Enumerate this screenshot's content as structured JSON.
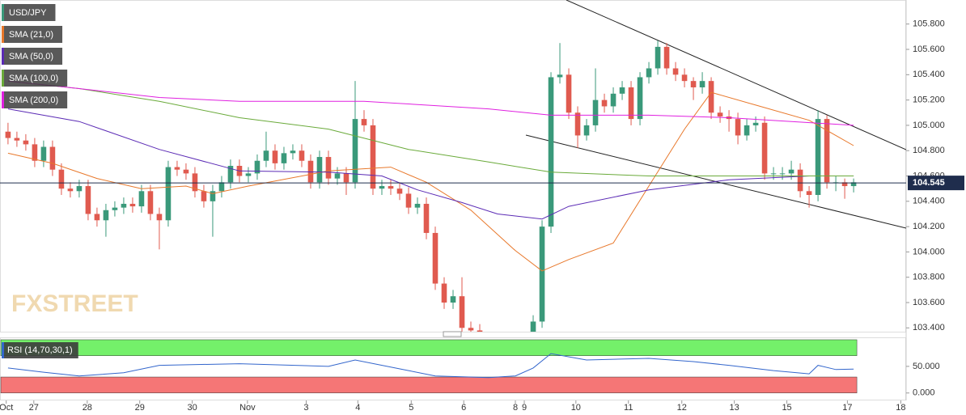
{
  "chart_data": {
    "type": "candlestick",
    "symbol": "USD/JPY",
    "watermark": "FXSTREET",
    "up_color": "#3a997a",
    "down_color": "#e05a4f",
    "x": [
      0,
      1,
      2,
      3,
      4,
      5,
      6,
      7,
      8,
      9,
      10,
      11,
      12,
      13,
      14,
      15,
      16,
      17,
      18,
      19,
      20,
      21,
      22,
      23,
      24,
      25,
      26,
      27,
      28,
      29,
      30,
      31,
      32,
      33,
      34,
      35,
      36,
      37,
      38,
      39,
      40,
      41,
      42,
      43,
      44,
      45,
      46,
      47,
      48,
      49,
      50,
      51,
      52,
      53,
      59,
      60,
      61,
      62,
      63,
      64,
      65,
      66,
      67,
      68,
      69,
      70,
      71,
      72,
      73,
      74,
      75,
      76,
      77,
      78,
      79,
      80,
      81,
      82,
      83,
      84,
      85,
      86,
      87,
      88,
      89,
      90,
      91,
      92,
      93,
      94,
      95
    ],
    "open": [
      104.95,
      104.9,
      104.88,
      104.85,
      104.72,
      104.83,
      104.65,
      104.5,
      104.48,
      104.52,
      104.3,
      104.25,
      104.33,
      104.35,
      104.38,
      104.36,
      104.48,
      104.3,
      104.25,
      104.67,
      104.65,
      104.62,
      104.48,
      104.4,
      104.48,
      104.55,
      104.68,
      104.6,
      104.62,
      104.72,
      104.8,
      104.7,
      104.78,
      104.8,
      104.72,
      104.55,
      104.75,
      104.58,
      104.62,
      104.55,
      105.05,
      105.0,
      104.5,
      104.52,
      104.5,
      104.46,
      104.35,
      104.38,
      104.15,
      103.75,
      103.6,
      103.65,
      103.4,
      103.38,
      103.3,
      103.45,
      104.2,
      105.38,
      105.4,
      105.1,
      104.92,
      105.0,
      105.2,
      105.15,
      105.25,
      105.3,
      105.05,
      105.38,
      105.45,
      105.62,
      105.45,
      105.4,
      105.35,
      105.3,
      105.35,
      105.1,
      105.07,
      105.05,
      104.92,
      105.0,
      105.02,
      104.62,
      104.62,
      104.62,
      104.65,
      104.48,
      104.45,
      105.05,
      104.55,
      104.55,
      104.52
    ],
    "high": [
      105.02,
      104.95,
      104.93,
      104.9,
      104.88,
      104.88,
      104.7,
      104.55,
      104.57,
      104.57,
      104.35,
      104.38,
      104.4,
      104.43,
      104.43,
      104.53,
      104.53,
      104.35,
      104.72,
      104.72,
      104.7,
      104.67,
      104.53,
      104.53,
      104.6,
      104.73,
      104.73,
      104.67,
      104.77,
      104.95,
      104.85,
      104.83,
      104.85,
      104.85,
      104.77,
      104.8,
      104.8,
      104.67,
      104.67,
      105.35,
      105.12,
      105.05,
      104.57,
      104.57,
      104.55,
      104.51,
      104.43,
      104.43,
      104.2,
      103.8,
      103.7,
      103.8,
      103.45,
      103.43,
      103.5,
      104.25,
      105.42,
      105.65,
      105.45,
      105.15,
      105.05,
      105.45,
      105.25,
      105.3,
      105.35,
      105.35,
      105.42,
      105.5,
      105.67,
      105.65,
      105.5,
      105.45,
      105.38,
      105.42,
      105.38,
      105.15,
      105.12,
      105.1,
      105.05,
      105.07,
      105.07,
      104.67,
      104.67,
      104.72,
      104.7,
      104.52,
      105.12,
      105.08,
      104.6,
      104.58,
      104.58
    ],
    "low": [
      104.85,
      104.83,
      104.8,
      104.67,
      104.67,
      104.6,
      104.45,
      104.43,
      104.43,
      104.25,
      104.2,
      104.12,
      104.28,
      104.3,
      104.31,
      104.31,
      104.25,
      104.02,
      104.2,
      104.6,
      104.57,
      104.43,
      104.35,
      104.12,
      104.43,
      104.5,
      104.55,
      104.55,
      104.57,
      104.67,
      104.65,
      104.65,
      104.73,
      104.67,
      104.5,
      104.5,
      104.53,
      104.53,
      104.45,
      104.5,
      104.95,
      104.45,
      104.45,
      104.45,
      104.41,
      104.3,
      104.3,
      104.1,
      103.7,
      103.55,
      103.55,
      103.35,
      103.33,
      103.3,
      103.25,
      103.4,
      104.15,
      105.33,
      105.05,
      104.82,
      104.88,
      104.95,
      105.1,
      105.1,
      105.2,
      105.0,
      105.0,
      105.33,
      105.4,
      105.4,
      105.35,
      105.3,
      105.2,
      105.25,
      105.05,
      105.02,
      104.95,
      104.85,
      104.88,
      104.95,
      104.57,
      104.57,
      104.57,
      104.57,
      104.43,
      104.35,
      104.4,
      104.5,
      104.48,
      104.42,
      104.47
    ],
    "close": [
      104.9,
      104.88,
      104.85,
      104.72,
      104.83,
      104.65,
      104.5,
      104.48,
      104.52,
      104.3,
      104.25,
      104.33,
      104.35,
      104.38,
      104.36,
      104.48,
      104.3,
      104.25,
      104.67,
      104.65,
      104.62,
      104.48,
      104.4,
      104.48,
      104.55,
      104.68,
      104.6,
      104.62,
      104.72,
      104.8,
      104.7,
      104.78,
      104.8,
      104.72,
      104.55,
      104.75,
      104.58,
      104.62,
      104.55,
      105.05,
      105.0,
      104.5,
      104.52,
      104.5,
      104.46,
      104.35,
      104.38,
      104.15,
      103.75,
      103.6,
      103.65,
      103.4,
      103.38,
      103.35,
      103.45,
      104.2,
      105.38,
      105.4,
      105.1,
      104.92,
      105.0,
      105.2,
      105.15,
      105.25,
      105.3,
      105.05,
      105.38,
      105.45,
      105.62,
      105.45,
      105.4,
      105.35,
      105.3,
      105.35,
      105.1,
      105.07,
      105.05,
      104.92,
      105.0,
      105.02,
      104.62,
      104.62,
      104.62,
      104.65,
      104.48,
      104.45,
      105.05,
      104.55,
      104.55,
      104.52,
      104.55
    ],
    "overlays": [
      {
        "name": "SMA (21,0)",
        "color": "#e8782b",
        "x": [
          0,
          5,
          10,
          15,
          20,
          23,
          27,
          36,
          43,
          47,
          52,
          57,
          60,
          63,
          68,
          72,
          76,
          79,
          84,
          90,
          95
        ],
        "values": [
          104.78,
          104.7,
          104.58,
          104.5,
          104.52,
          104.46,
          104.52,
          104.64,
          104.67,
          104.55,
          104.33,
          104.01,
          103.85,
          103.94,
          104.07,
          104.52,
          104.97,
          105.26,
          105.16,
          105.04,
          104.84
        ]
      },
      {
        "name": "SMA (50,0)",
        "color": "#5b2bb5",
        "x": [
          0,
          8,
          17,
          26,
          36,
          42,
          46,
          51,
          55,
          60,
          63,
          72,
          81,
          90,
          95
        ],
        "values": [
          105.13,
          105.03,
          104.81,
          104.64,
          104.63,
          104.6,
          104.49,
          104.39,
          104.3,
          104.26,
          104.36,
          104.49,
          104.57,
          104.6,
          104.6
        ]
      },
      {
        "name": "SMA (100,0)",
        "color": "#6aaa3a",
        "x": [
          0,
          8,
          17,
          26,
          36,
          45,
          54,
          61,
          72,
          81,
          95
        ],
        "values": [
          105.35,
          105.29,
          105.19,
          105.06,
          104.97,
          104.81,
          104.71,
          104.63,
          104.6,
          104.6,
          104.6
        ]
      },
      {
        "name": "SMA (200,0)",
        "color": "#e020e0",
        "x": [
          0,
          8,
          17,
          26,
          40,
          54,
          61,
          72,
          81,
          95
        ],
        "values": [
          105.35,
          105.29,
          105.22,
          105.19,
          105.19,
          105.13,
          105.08,
          105.08,
          105.06,
          105.0
        ]
      }
    ],
    "last_price": 104.545,
    "xlim": [
      -0.9,
      100.9
    ],
    "ylim": [
      103.37,
      105.99
    ],
    "yticks": [
      {
        "value": 105.8,
        "label": "105.800"
      },
      {
        "value": 105.6,
        "label": "105.600"
      },
      {
        "value": 105.4,
        "label": "105.400"
      },
      {
        "value": 105.2,
        "label": "105.200"
      },
      {
        "value": 105.0,
        "label": "105.000"
      },
      {
        "value": 104.8,
        "label": "104.800"
      },
      {
        "value": 104.6,
        "label": "104.600"
      },
      {
        "value": 104.4,
        "label": "104.400"
      },
      {
        "value": 104.2,
        "label": "104.200"
      },
      {
        "value": 104.0,
        "label": "104.000"
      },
      {
        "value": 103.8,
        "label": "103.800"
      },
      {
        "value": 103.6,
        "label": "103.600"
      },
      {
        "value": 103.4,
        "label": "103.400"
      }
    ],
    "xticks": [
      {
        "value": -0.2,
        "label": "Oct"
      },
      {
        "value": 2.9,
        "label": "27"
      },
      {
        "value": 8.9,
        "label": "28"
      },
      {
        "value": 14.8,
        "label": "29"
      },
      {
        "value": 20.7,
        "label": "30"
      },
      {
        "value": 26.9,
        "label": "Nov"
      },
      {
        "value": 33.5,
        "label": "3"
      },
      {
        "value": 39.3,
        "label": "4"
      },
      {
        "value": 45.3,
        "label": "5"
      },
      {
        "value": 51.2,
        "label": "6"
      },
      {
        "value": 57,
        "label": "8"
      },
      {
        "value": 58,
        "label": "9"
      },
      {
        "value": 63.8,
        "label": "10"
      },
      {
        "value": 69.7,
        "label": "11"
      },
      {
        "value": 75.7,
        "label": "12"
      },
      {
        "value": 81.6,
        "label": "13"
      },
      {
        "value": 87.5,
        "label": "15"
      },
      {
        "value": 94.3,
        "label": "17"
      },
      {
        "value": 100.3,
        "label": "18"
      }
    ],
    "rsi": {
      "name": "RSI (14,70,30,1)",
      "color": "#3366cc",
      "x": [
        0,
        4,
        8,
        13,
        17,
        26,
        36,
        39,
        45,
        48,
        54,
        57,
        59,
        61,
        65,
        72,
        77,
        81,
        86,
        90,
        91,
        93,
        95
      ],
      "values": [
        47,
        39,
        32,
        38,
        52,
        55,
        50,
        62,
        42,
        32,
        29,
        32,
        47,
        74,
        62,
        65,
        59,
        52,
        42,
        36,
        52,
        44,
        45
      ],
      "upper": 70,
      "lower": 30,
      "bounds": [
        0,
        100
      ],
      "upper_color": "#74f06a",
      "lower_color": "#f57676",
      "ylim": [
        -14,
        103
      ],
      "yticks": [
        {
          "value": 50,
          "label": "50.000"
        },
        {
          "value": 0,
          "label": "0.000"
        }
      ]
    }
  }
}
